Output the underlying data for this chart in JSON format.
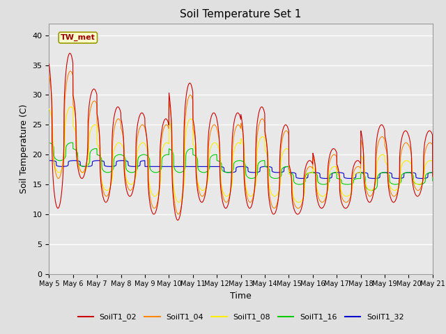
{
  "title": "Soil Temperature Set 1",
  "xlabel": "Time",
  "ylabel": "Soil Temperature (C)",
  "ylim": [
    0,
    42
  ],
  "yticks": [
    0,
    5,
    10,
    15,
    20,
    25,
    30,
    35,
    40
  ],
  "n_days": 16,
  "annotation_text": "TW_met",
  "annotation_bg": "#ffffcc",
  "annotation_border": "#999900",
  "annotation_text_color": "#990000",
  "colors": {
    "SoilT1_02": "#cc0000",
    "SoilT1_04": "#ff8800",
    "SoilT1_08": "#ffee00",
    "SoilT1_16": "#00cc00",
    "SoilT1_32": "#0000cc"
  },
  "background_color": "#e8e8e8",
  "grid_color": "#ffffff",
  "legend_labels": [
    "SoilT1_02",
    "SoilT1_04",
    "SoilT1_08",
    "SoilT1_16",
    "SoilT1_32"
  ],
  "legend_colors": [
    "#cc0000",
    "#ff8800",
    "#ffee00",
    "#00cc00",
    "#0000cc"
  ]
}
